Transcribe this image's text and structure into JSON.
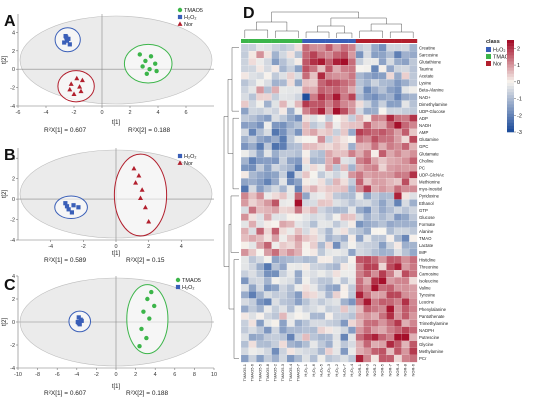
{
  "colors": {
    "TMAO5": "#3cb54a",
    "H2O2": "#3a5fb8",
    "Nor": "#b21f2d",
    "ellipse_fill": "#ebebeb",
    "hm_low": "#1f4e9c",
    "hm_mid": "#f7f4ee",
    "hm_high": "#a50f2a"
  },
  "panels": {
    "A": {
      "letter": "A",
      "r2x1": "R²X[1] = 0.607",
      "r2x2": "R²X[2] = 0.188",
      "xlabel": "t[1]",
      "ylabel": "t[2]",
      "legend": [
        {
          "label": "TMAO5",
          "group": "TMAO5"
        },
        {
          "label": "H₂O₂",
          "group": "H2O2"
        },
        {
          "label": "Nor",
          "group": "Nor"
        }
      ]
    },
    "B": {
      "letter": "B",
      "r2x1": "R²X[1] = 0.589",
      "r2x2": "R²X[2] = 0.15",
      "xlabel": "t[1]",
      "ylabel": "t[2]",
      "legend": [
        {
          "label": "H₂O₂",
          "group": "H2O2"
        },
        {
          "label": "Nor",
          "group": "Nor"
        }
      ]
    },
    "C": {
      "letter": "C",
      "r2x1": "R²X[1] = 0.607",
      "r2x2": "R²X[2] = 0.188",
      "xlabel": "t[1]",
      "ylabel": "t[2]",
      "legend": [
        {
          "label": "TMAO5",
          "group": "TMAO5"
        },
        {
          "label": "H₂O₂",
          "group": "H2O2"
        }
      ]
    },
    "D": {
      "letter": "D",
      "legend_title": "class",
      "legend": [
        {
          "label": "H₂O₂",
          "group": "H2O2"
        },
        {
          "label": "TMAO5",
          "group": "TMAO5"
        },
        {
          "label": "Nor",
          "group": "Nor"
        }
      ],
      "colorbar_ticks": [
        "2",
        "1",
        "0",
        "-1",
        "-2",
        "-3"
      ]
    }
  },
  "chart_data": [
    {
      "type": "scatter",
      "panel": "A",
      "xlim": [
        -6,
        8
      ],
      "ylim": [
        -4,
        6
      ],
      "xticks": [
        -6,
        -4,
        -2,
        0,
        2,
        4,
        6
      ],
      "yticks": [
        -4,
        -2,
        0,
        2,
        4
      ],
      "series": [
        {
          "name": "H₂O₂",
          "group": "H2O2",
          "marker": "square",
          "points": [
            [
              -2.6,
              3.6
            ],
            [
              -2.4,
              3.3
            ],
            [
              -2.7,
              2.9
            ],
            [
              -2.3,
              2.7
            ],
            [
              -2.5,
              3.1
            ],
            [
              -2.55,
              3.45
            ]
          ],
          "ellipse": {
            "cx": -2.45,
            "cy": 3.2,
            "rx": 0.9,
            "ry": 1.3
          }
        },
        {
          "name": "Nor",
          "group": "Nor",
          "marker": "triangle",
          "points": [
            [
              -1.8,
              -1.0
            ],
            [
              -1.4,
              -1.2
            ],
            [
              -2.2,
              -1.6
            ],
            [
              -1.6,
              -1.9
            ],
            [
              -2.3,
              -2.2
            ],
            [
              -1.5,
              -2.4
            ],
            [
              -2.0,
              -2.7
            ]
          ],
          "ellipse": {
            "cx": -1.85,
            "cy": -1.85,
            "rx": 1.3,
            "ry": 1.7
          }
        },
        {
          "name": "TMAO5",
          "group": "TMAO5",
          "marker": "circle",
          "points": [
            [
              2.7,
              1.6
            ],
            [
              3.5,
              1.4
            ],
            [
              3.1,
              0.9
            ],
            [
              3.8,
              0.6
            ],
            [
              2.9,
              0.3
            ],
            [
              3.4,
              0.0
            ],
            [
              3.9,
              -0.2
            ],
            [
              3.2,
              -0.5
            ]
          ],
          "ellipse": {
            "cx": 3.3,
            "cy": 0.6,
            "rx": 1.7,
            "ry": 2.1
          }
        }
      ]
    },
    {
      "type": "scatter",
      "panel": "B",
      "xlim": [
        -6,
        6
      ],
      "ylim": [
        -4,
        5
      ],
      "xticks": [
        -4,
        -2,
        0,
        2,
        4
      ],
      "yticks": [
        -4,
        -2,
        0,
        2,
        4
      ],
      "series": [
        {
          "name": "H₂O₂",
          "group": "H2O2",
          "marker": "square",
          "points": [
            [
              -3.1,
              -0.4
            ],
            [
              -2.6,
              -0.6
            ],
            [
              -2.9,
              -1.0
            ],
            [
              -2.3,
              -0.8
            ],
            [
              -2.7,
              -1.3
            ],
            [
              -3.0,
              -0.7
            ]
          ],
          "ellipse": {
            "cx": -2.75,
            "cy": -0.8,
            "rx": 1.0,
            "ry": 1.1
          }
        },
        {
          "name": "Nor",
          "group": "Nor",
          "marker": "triangle",
          "points": [
            [
              1.1,
              3.0
            ],
            [
              1.4,
              2.3
            ],
            [
              1.2,
              1.6
            ],
            [
              1.6,
              0.9
            ],
            [
              1.5,
              0.1
            ],
            [
              1.8,
              -0.8
            ],
            [
              2.0,
              -2.2
            ]
          ],
          "ellipse": {
            "cx": 1.5,
            "cy": 0.4,
            "rx": 1.6,
            "ry": 4.0
          }
        }
      ]
    },
    {
      "type": "scatter",
      "panel": "C",
      "xlim": [
        -10,
        10
      ],
      "ylim": [
        -4,
        4
      ],
      "xticks": [
        -10,
        -8,
        -6,
        -4,
        -2,
        0,
        2,
        4,
        6,
        8,
        10
      ],
      "yticks": [
        -4,
        -2,
        0,
        2,
        4
      ],
      "series": [
        {
          "name": "H₂O₂",
          "group": "H2O2",
          "marker": "square",
          "points": [
            [
              -3.8,
              0.4
            ],
            [
              -3.6,
              0.2
            ],
            [
              -3.9,
              0.0
            ],
            [
              -3.7,
              -0.2
            ],
            [
              -3.5,
              0.1
            ],
            [
              -3.8,
              -0.1
            ]
          ],
          "ellipse": {
            "cx": -3.7,
            "cy": 0.05,
            "rx": 1.1,
            "ry": 0.9
          }
        },
        {
          "name": "TMAO5",
          "group": "TMAO5",
          "marker": "circle",
          "points": [
            [
              3.6,
              2.6
            ],
            [
              3.2,
              2.0
            ],
            [
              3.9,
              1.4
            ],
            [
              2.8,
              0.9
            ],
            [
              3.4,
              0.3
            ],
            [
              2.6,
              -0.6
            ],
            [
              3.1,
              -1.4
            ],
            [
              2.4,
              -2.1
            ]
          ],
          "ellipse": {
            "cx": 3.2,
            "cy": 0.25,
            "rx": 2.1,
            "ry": 3.0
          }
        }
      ]
    },
    {
      "type": "heatmap",
      "panel": "D",
      "columns": [
        "TMAO5-1",
        "TMAO5-2",
        "TMAO5-3",
        "TMAO5-4",
        "TMAO5-5",
        "TMAO5-6",
        "TMAO5-7",
        "TMAO5-8",
        "H₂O₂-1",
        "H₂O₂-2",
        "H₂O₂-3",
        "H₂O₂-4",
        "H₂O₂-5",
        "H₂O₂-6",
        "H₂O₂-7",
        "NOR-1",
        "NOR-2",
        "NOR-3",
        "NOR-4",
        "NOR-5",
        "NOR-6",
        "NOR-7",
        "NOR-8"
      ],
      "column_labels": [
        "TMAO5-1",
        "TMAO5-6",
        "TMAO5-5",
        "TMAO5-8",
        "TMAO5-2",
        "TMAO5-3",
        "TMAO5-4",
        "TMAO5-7",
        "H₂O₂-1",
        "H₂O₂-6",
        "H₂O₂-5",
        "H₂O₂-3",
        "H₂O₂-2",
        "H₂O₂-7",
        "H₂O₂-4",
        "NOR-1",
        "NOR-3",
        "NOR-2",
        "NOR-5",
        "NOR-7",
        "NOR-4",
        "NOR-8",
        "NOR-6"
      ],
      "column_classes": [
        "TMAO5",
        "TMAO5",
        "TMAO5",
        "TMAO5",
        "TMAO5",
        "TMAO5",
        "TMAO5",
        "TMAO5",
        "H2O2",
        "H2O2",
        "H2O2",
        "H2O2",
        "H2O2",
        "H2O2",
        "H2O2",
        "Nor",
        "Nor",
        "Nor",
        "Nor",
        "Nor",
        "Nor",
        "Nor",
        "Nor"
      ],
      "rows": [
        "Creatine",
        "Sarcosine",
        "Glutathione",
        "Taurine",
        "Acetate",
        "Lysine",
        "Beta-Alanine",
        "NAD+",
        "Dimethylamine",
        "UDP-Glucose",
        "ADP",
        "NADH",
        "AMP",
        "Glutamine",
        "GPC",
        "Glutamate",
        "Choline",
        "PC",
        "UDP-GlcNAc",
        "Methionine",
        "myo-Inositol",
        "Pyridoxine",
        "Ethanol",
        "GTP",
        "Glucose",
        "Formate",
        "Alanine",
        "TMAO",
        "Lactate",
        "IMP",
        "Histidine",
        "Threonine",
        "Carnosine",
        "Isoleucine",
        "Valine",
        "Tyrosine",
        "Leucine",
        "Phenylalanine",
        "Pantothenate",
        "Trimethylamine",
        "NADPH",
        "Putrescine",
        "Glycine",
        "Methylamine",
        "PCr"
      ],
      "value_range": [
        -3,
        2.5
      ]
    }
  ]
}
